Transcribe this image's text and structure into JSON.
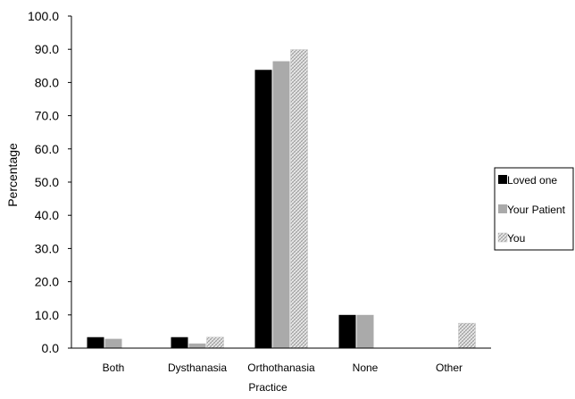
{
  "chart_data": {
    "type": "bar",
    "xlabel": "Practice",
    "ylabel": "Percentage",
    "categories": [
      "Both",
      "Dysthanasia",
      "Orthothanasia",
      "None",
      "Other"
    ],
    "series": [
      {
        "name": "Loved one",
        "values": [
          3.3,
          3.3,
          83.8,
          10.0,
          0.0
        ],
        "color": "#000000",
        "pattern": "solid"
      },
      {
        "name": "Your Patient",
        "values": [
          2.8,
          1.4,
          86.4,
          10.0,
          0.0
        ],
        "color": "#aaaaaa",
        "pattern": "solid"
      },
      {
        "name": "You",
        "values": [
          0.0,
          3.3,
          89.9,
          0.0,
          7.5
        ],
        "color": "#bdbdbd",
        "pattern": "crosshatch"
      }
    ],
    "ylim": [
      0,
      100
    ],
    "yticks": [
      0.0,
      10.0,
      20.0,
      30.0,
      40.0,
      50.0,
      60.0,
      70.0,
      80.0,
      90.0,
      100.0
    ],
    "ytick_labels": [
      "0.0",
      "10.0",
      "20.0",
      "30.0",
      "40.0",
      "50.0",
      "60.0",
      "70.0",
      "80.0",
      "90.0",
      "100.0"
    ],
    "grid": false,
    "legend_position": "right"
  }
}
